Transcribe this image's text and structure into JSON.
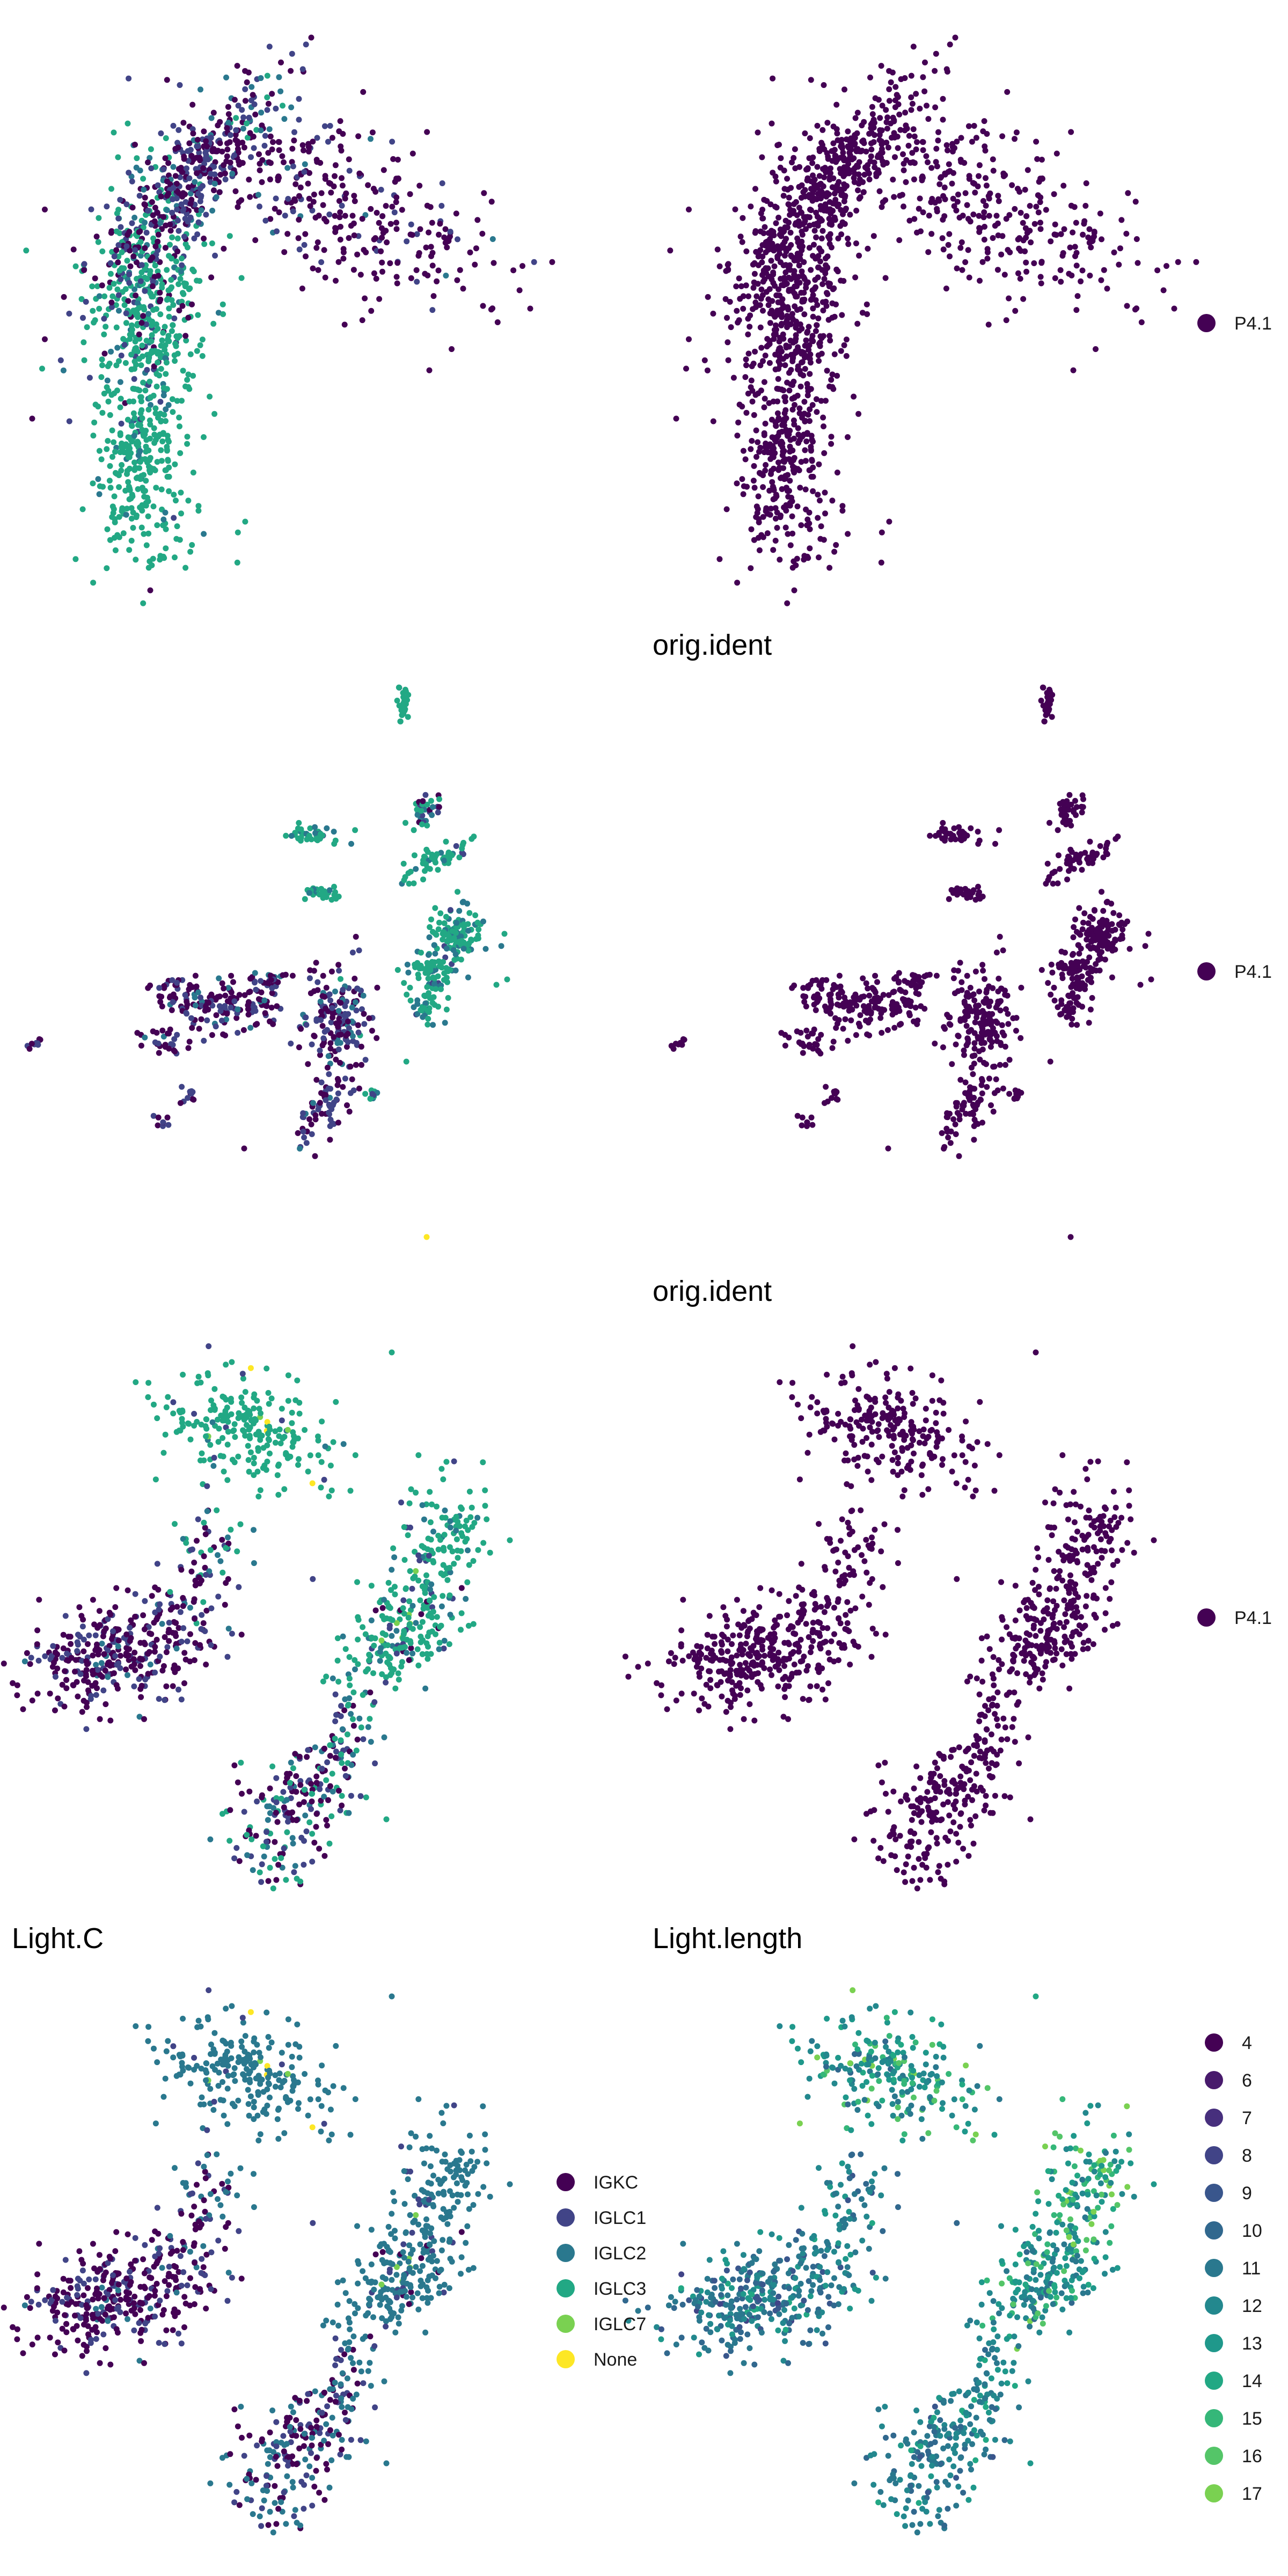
{
  "figure": {
    "rows": [
      {
        "titles": [
          "",
          ""
        ],
        "legend_right": [
          "P4.1"
        ]
      },
      {
        "titles": [
          "",
          "orig.ident"
        ],
        "legend_right": [
          "P4.1"
        ]
      },
      {
        "titles": [
          "",
          "orig.ident"
        ],
        "legend_right": [
          "P4.1"
        ]
      },
      {
        "titles": [
          "Light.C",
          "Light.length"
        ],
        "legend_mid": [
          "IGKC",
          "IGLC1",
          "IGLC2",
          "IGLC3",
          "IGLC7",
          "None"
        ],
        "legend_right": [
          "4",
          "6",
          "7",
          "8",
          "9",
          "10",
          "11",
          "12",
          "13",
          "14",
          "15",
          "16",
          "17"
        ]
      }
    ]
  },
  "colors": {
    "viridis6": [
      "#440154",
      "#414487",
      "#2a788e",
      "#22a884",
      "#7ad151",
      "#fde725"
    ],
    "viridis13": [
      "#440154",
      "#481a6c",
      "#472f7d",
      "#414487",
      "#39568c",
      "#31688e",
      "#2a788e",
      "#23888e",
      "#1f988b",
      "#22a884",
      "#35b779",
      "#54c568",
      "#7ad151"
    ],
    "single": "#440154"
  },
  "chart_data": [
    {
      "type": "scatter",
      "panel": "row1-left",
      "title": "",
      "xlabel": "",
      "ylabel": "",
      "grid": false,
      "legend": "none",
      "n_points_approx": 1500,
      "clusters": [
        "IGKC",
        "IGLC1",
        "IGLC2",
        "IGLC3"
      ]
    },
    {
      "type": "scatter",
      "panel": "row1-right",
      "title": "",
      "xlabel": "",
      "ylabel": "",
      "grid": false,
      "legend": "right",
      "series": [
        {
          "name": "P4.1",
          "color": "#440154"
        }
      ]
    },
    {
      "type": "scatter",
      "panel": "row2-left",
      "title": "",
      "xlabel": "",
      "ylabel": "",
      "grid": false,
      "legend": "none"
    },
    {
      "type": "scatter",
      "panel": "row2-right",
      "title": "orig.ident",
      "xlabel": "",
      "ylabel": "",
      "grid": false,
      "legend": "right",
      "series": [
        {
          "name": "P4.1",
          "color": "#440154"
        }
      ]
    },
    {
      "type": "scatter",
      "panel": "row3-left",
      "title": "",
      "xlabel": "",
      "ylabel": "",
      "grid": false,
      "legend": "none"
    },
    {
      "type": "scatter",
      "panel": "row3-right",
      "title": "orig.ident",
      "xlabel": "",
      "ylabel": "",
      "grid": false,
      "legend": "right",
      "series": [
        {
          "name": "P4.1",
          "color": "#440154"
        }
      ]
    },
    {
      "type": "scatter",
      "panel": "row4-left",
      "title": "Light.C",
      "xlabel": "",
      "ylabel": "",
      "grid": false,
      "legend": "right",
      "series": [
        {
          "name": "IGKC",
          "color": "#440154"
        },
        {
          "name": "IGLC1",
          "color": "#414487"
        },
        {
          "name": "IGLC2",
          "color": "#2a788e"
        },
        {
          "name": "IGLC3",
          "color": "#22a884"
        },
        {
          "name": "IGLC7",
          "color": "#7ad151"
        },
        {
          "name": "None",
          "color": "#fde725"
        }
      ]
    },
    {
      "type": "scatter",
      "panel": "row4-right",
      "title": "Light.length",
      "xlabel": "",
      "ylabel": "",
      "grid": false,
      "legend": "right",
      "series": [
        {
          "name": "4"
        },
        {
          "name": "6"
        },
        {
          "name": "7"
        },
        {
          "name": "8"
        },
        {
          "name": "9"
        },
        {
          "name": "10"
        },
        {
          "name": "11"
        },
        {
          "name": "12"
        },
        {
          "name": "13"
        },
        {
          "name": "14"
        },
        {
          "name": "15"
        },
        {
          "name": "16"
        },
        {
          "name": "17"
        }
      ]
    }
  ]
}
